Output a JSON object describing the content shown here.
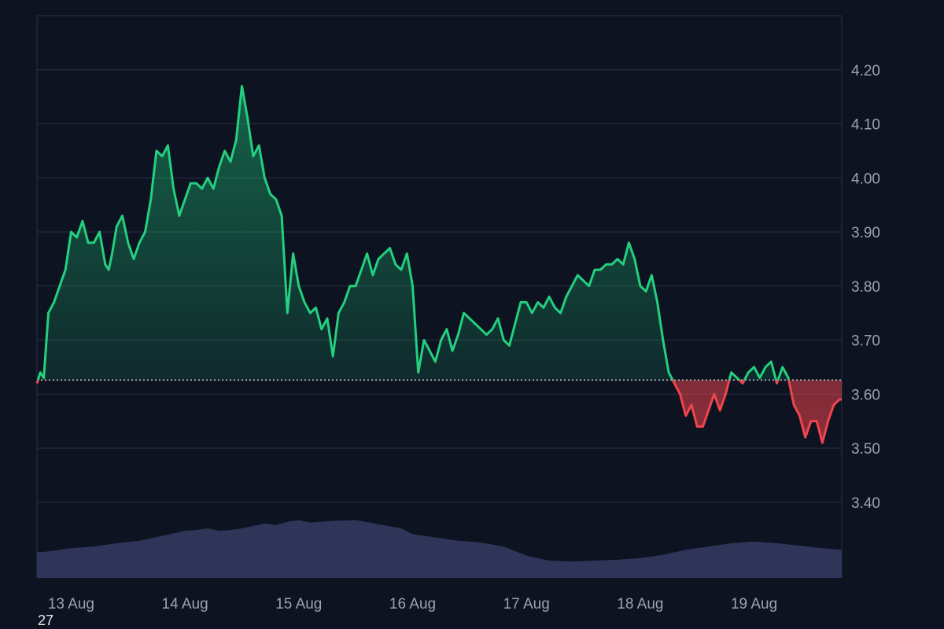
{
  "chart_data": {
    "type": "line",
    "title": "",
    "xlabel": "",
    "ylabel": "",
    "baseline": 3.626,
    "ylim": [
      3.26,
      4.3
    ],
    "y_ticks": [
      "3.40",
      "3.50",
      "3.60",
      "3.70",
      "3.80",
      "3.90",
      "4.00",
      "4.10",
      "4.20"
    ],
    "x_ticks": [
      "13 Aug",
      "14 Aug",
      "15 Aug",
      "16 Aug",
      "17 Aug",
      "18 Aug",
      "19 Aug"
    ],
    "x_tick_positions": [
      0.3,
      1.3,
      2.3,
      3.3,
      4.3,
      5.3,
      6.3
    ],
    "x_range": [
      0,
      7.07
    ],
    "grid": true,
    "colors": {
      "above": "#22d07f",
      "below": "#f0444e",
      "volume": "#2e3558",
      "grid": "#2a3142",
      "baseline": "#cfd4dc"
    },
    "price_series": {
      "x": [
        0,
        0.03,
        0.06,
        0.1,
        0.15,
        0.2,
        0.25,
        0.3,
        0.35,
        0.4,
        0.45,
        0.5,
        0.55,
        0.6,
        0.63,
        0.66,
        0.7,
        0.75,
        0.8,
        0.85,
        0.9,
        0.95,
        1.0,
        1.05,
        1.1,
        1.15,
        1.2,
        1.25,
        1.3,
        1.35,
        1.4,
        1.45,
        1.5,
        1.55,
        1.6,
        1.65,
        1.7,
        1.75,
        1.8,
        1.85,
        1.9,
        1.95,
        2.0,
        2.05,
        2.1,
        2.15,
        2.2,
        2.25,
        2.3,
        2.35,
        2.4,
        2.45,
        2.5,
        2.55,
        2.6,
        2.65,
        2.7,
        2.75,
        2.8,
        2.85,
        2.9,
        2.95,
        3.0,
        3.05,
        3.1,
        3.15,
        3.2,
        3.25,
        3.3,
        3.35,
        3.4,
        3.45,
        3.5,
        3.55,
        3.6,
        3.65,
        3.7,
        3.75,
        3.8,
        3.85,
        3.9,
        3.95,
        4.0,
        4.05,
        4.1,
        4.15,
        4.2,
        4.25,
        4.3,
        4.35,
        4.4,
        4.45,
        4.5,
        4.55,
        4.6,
        4.65,
        4.7,
        4.75,
        4.8,
        4.85,
        4.9,
        4.95,
        5.0,
        5.05,
        5.1,
        5.15,
        5.2,
        5.25,
        5.3,
        5.35,
        5.4,
        5.45,
        5.5,
        5.55,
        5.6,
        5.65,
        5.7,
        5.75,
        5.8,
        5.85,
        5.9,
        5.95,
        6.0,
        6.05,
        6.1,
        6.15,
        6.2,
        6.25,
        6.3,
        6.35,
        6.4,
        6.45,
        6.5,
        6.55,
        6.6,
        6.65,
        6.7,
        6.75,
        6.8,
        6.85,
        6.9,
        6.95,
        7.0,
        7.05,
        7.07
      ],
      "y": [
        3.62,
        3.64,
        3.63,
        3.75,
        3.77,
        3.8,
        3.83,
        3.9,
        3.89,
        3.92,
        3.88,
        3.88,
        3.9,
        3.84,
        3.83,
        3.86,
        3.91,
        3.93,
        3.88,
        3.85,
        3.88,
        3.9,
        3.96,
        4.05,
        4.04,
        4.06,
        3.98,
        3.93,
        3.96,
        3.99,
        3.99,
        3.98,
        4.0,
        3.98,
        4.02,
        4.05,
        4.03,
        4.07,
        4.17,
        4.11,
        4.04,
        4.06,
        4.0,
        3.97,
        3.96,
        3.93,
        3.75,
        3.86,
        3.8,
        3.77,
        3.75,
        3.76,
        3.72,
        3.74,
        3.67,
        3.75,
        3.77,
        3.8,
        3.8,
        3.83,
        3.86,
        3.82,
        3.85,
        3.86,
        3.87,
        3.84,
        3.83,
        3.86,
        3.8,
        3.64,
        3.7,
        3.68,
        3.66,
        3.7,
        3.72,
        3.68,
        3.71,
        3.75,
        3.74,
        3.73,
        3.72,
        3.71,
        3.72,
        3.74,
        3.7,
        3.69,
        3.73,
        3.77,
        3.77,
        3.75,
        3.77,
        3.76,
        3.78,
        3.76,
        3.75,
        3.78,
        3.8,
        3.82,
        3.81,
        3.8,
        3.83,
        3.83,
        3.84,
        3.84,
        3.85,
        3.84,
        3.88,
        3.85,
        3.8,
        3.79,
        3.82,
        3.77,
        3.7,
        3.64,
        3.62,
        3.6,
        3.56,
        3.58,
        3.54,
        3.54,
        3.57,
        3.6,
        3.57,
        3.6,
        3.64,
        3.63,
        3.62,
        3.64,
        3.65,
        3.63,
        3.65,
        3.66,
        3.62,
        3.65,
        3.63,
        3.58,
        3.56,
        3.52,
        3.55,
        3.55,
        3.51,
        3.55,
        3.58,
        3.59,
        3.59
      ]
    },
    "volume_series": {
      "x": [
        0,
        0.1,
        0.3,
        0.5,
        0.7,
        0.9,
        1.1,
        1.3,
        1.4,
        1.5,
        1.6,
        1.7,
        1.8,
        1.9,
        2.0,
        2.1,
        2.2,
        2.3,
        2.4,
        2.6,
        2.8,
        3.0,
        3.2,
        3.3,
        3.5,
        3.7,
        3.9,
        4.1,
        4.3,
        4.5,
        4.7,
        4.9,
        5.1,
        5.3,
        5.5,
        5.7,
        5.9,
        6.1,
        6.3,
        6.5,
        6.7,
        6.9,
        7.07
      ],
      "y": [
        0.31,
        0.32,
        0.36,
        0.38,
        0.42,
        0.45,
        0.51,
        0.57,
        0.58,
        0.6,
        0.57,
        0.58,
        0.6,
        0.63,
        0.66,
        0.64,
        0.68,
        0.7,
        0.67,
        0.69,
        0.7,
        0.65,
        0.6,
        0.53,
        0.49,
        0.45,
        0.43,
        0.38,
        0.27,
        0.21,
        0.2,
        0.21,
        0.22,
        0.24,
        0.28,
        0.34,
        0.38,
        0.42,
        0.44,
        0.42,
        0.39,
        0.36,
        0.34
      ]
    }
  },
  "footer": {
    "corner_label": "27"
  }
}
